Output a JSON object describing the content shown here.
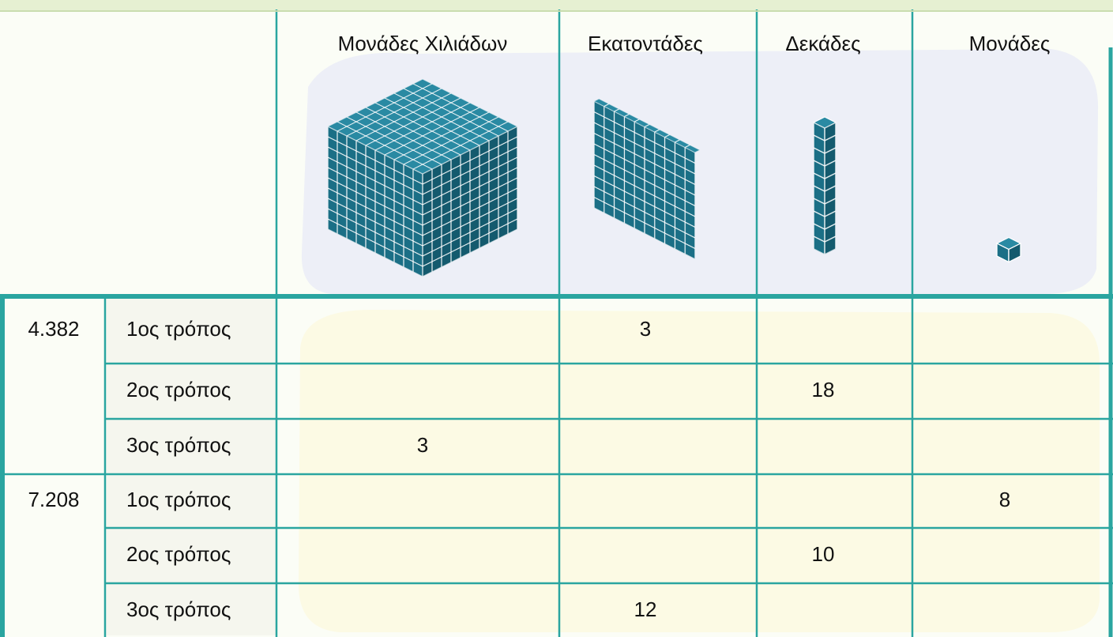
{
  "table": {
    "columns": [
      "Μονάδες Χιλιάδων",
      "Εκατοντάδες",
      "Δεκάδες",
      "Μονάδες"
    ],
    "groups": [
      {
        "number": "4.382",
        "rows": [
          {
            "way": "1ος τρόπος",
            "cells": [
              null,
              3,
              null,
              null
            ]
          },
          {
            "way": "2ος τρόπος",
            "cells": [
              null,
              null,
              18,
              null
            ]
          },
          {
            "way": "3ος τρόπος",
            "cells": [
              3,
              null,
              null,
              null
            ]
          }
        ]
      },
      {
        "number": "7.208",
        "rows": [
          {
            "way": "1ος τρόπος",
            "cells": [
              null,
              null,
              null,
              8
            ]
          },
          {
            "way": "2ος τρόπος",
            "cells": [
              null,
              null,
              10,
              null
            ]
          },
          {
            "way": "3ος τρόπος",
            "cells": [
              null,
              12,
              null,
              null
            ]
          }
        ]
      }
    ]
  }
}
